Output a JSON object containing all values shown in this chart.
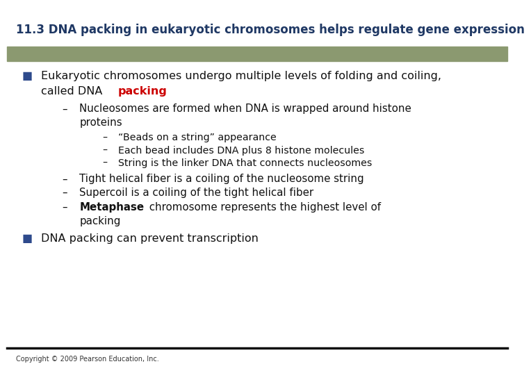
{
  "title": "11.3 DNA packing in eukaryotic chromosomes helps regulate gene expression",
  "title_color": "#1F3864",
  "title_fontsize": 12.0,
  "bg_color": "#FFFFFF",
  "header_bar_color": "#8B9970",
  "bullet_color": "#2E4A8C",
  "bullet_square": "■",
  "dash": "–",
  "copyright": "Copyright © 2009 Pearson Education, Inc.",
  "copyright_fontsize": 7.0,
  "bottom_line_color": "#111111",
  "content_fontsize": 11.5,
  "content_color": "#111111",
  "red_color": "#CC0000",
  "fs_sub": 10.8,
  "fs_subsub": 10.2
}
